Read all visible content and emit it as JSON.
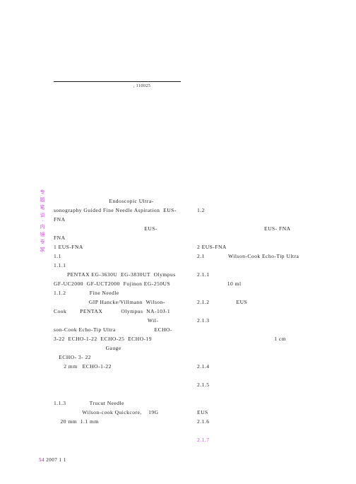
{
  "header": {
    "subtext": ", 110025"
  },
  "vertical": "专 题 笔 谈 · 内 镜 专 家",
  "left": {
    "l1": "Endoscopic Ultra-",
    "l2": "sonography Guided Fine Needle Aspiration  EUS-",
    "l3": "FNA",
    "l4": "EUS-",
    "l5": "FNA",
    "l6": "1 EUS-FNA",
    "l7": "1.1",
    "l8": "1.1.1",
    "l9": "PENTAX EG-3630U  EG-3830UT  Olympus",
    "l10": "GF-UC2000  GF-UCT2000  Fujinon EG-250US",
    "l11": "1.1.2              Fine Needle",
    "l11b": "GIP Hancke/Villmann  Wilson-",
    "l12": "Cook        PENTAX           Olympus  NA-10J-1",
    "l13": "Wil-",
    "l14": "son-Cook Echo-Tip Ultra                       ECHO-",
    "l15": "3-22  ECHO-1-22  ECHO-25  ECHO-19",
    "l16": "Gauge",
    "l17": "ECHO- 3- 22",
    "l18": "2 mm   ECHO-1-22",
    "l19": "1.1.3              Trucut Needle",
    "l20": "Wilson-cook Quickcore,    19G",
    "l21": "20 mm  1.1 mm"
  },
  "right": {
    "r1": "1.2",
    "r2": "EUS- FNA",
    "r3": "2 EUS-FNA",
    "r4": "2.1              Wilson-Cook Echo-Tip Ultra",
    "r5": "2.1.1",
    "r5b": "10 ml",
    "r6": "2.1.2                EUS",
    "r7": "2.1.3",
    "r8": "1 cm",
    "r9": "2.1.4",
    "r10": "2.1.5",
    "r11": "EUS",
    "r12": "2.1.6",
    "r13": "2.1.7"
  },
  "footer": {
    "page": "54",
    "year": "2007",
    "rest": "1        1"
  },
  "colors": {
    "text": "#1a1a1a",
    "accent": "#d946ef",
    "bg": "#ffffff"
  }
}
